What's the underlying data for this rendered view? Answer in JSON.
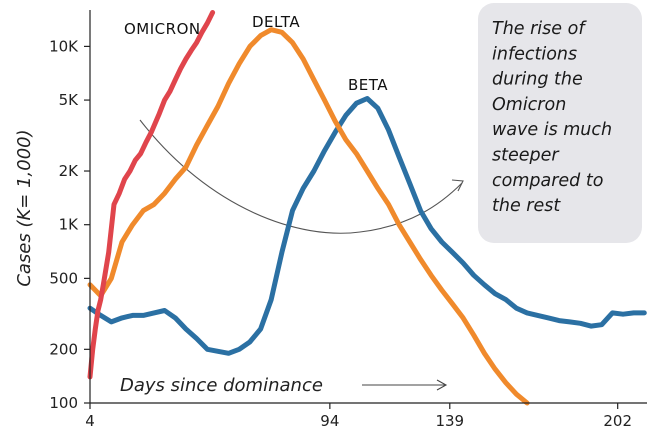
{
  "chart_data": {
    "type": "line",
    "ylabel": "Cases (K= 1,000)",
    "xlabel": "Days since dominance",
    "y_scale": "log",
    "ylim": [
      100,
      16000
    ],
    "xlim": [
      4,
      213
    ],
    "y_ticks": [
      {
        "value": 100,
        "label": "100"
      },
      {
        "value": 200,
        "label": "200"
      },
      {
        "value": 500,
        "label": "500"
      },
      {
        "value": 1000,
        "label": "1K"
      },
      {
        "value": 2000,
        "label": "2K"
      },
      {
        "value": 5000,
        "label": "5K"
      },
      {
        "value": 10000,
        "label": "10K"
      }
    ],
    "x_ticks": [
      {
        "value": 4,
        "label": "4"
      },
      {
        "value": 94,
        "label": "94"
      },
      {
        "value": 139,
        "label": "139"
      },
      {
        "value": 202,
        "label": "202"
      }
    ],
    "grid": false,
    "annotation": {
      "lines": [
        "The rise of",
        "infections",
        "during the",
        "Omicron",
        "wave is much",
        "steeper",
        "compared to",
        "the rest"
      ],
      "background": "#e6e6ea"
    },
    "series": [
      {
        "name": "OMICRON",
        "color": "#e0454c",
        "x": [
          4,
          5,
          6,
          7,
          8,
          9,
          11,
          13,
          15,
          17,
          19,
          21,
          23,
          25,
          27,
          30,
          32,
          34,
          36,
          38,
          40,
          42,
          44,
          46,
          48,
          50
        ],
        "y": [
          140,
          200,
          260,
          330,
          380,
          460,
          700,
          1300,
          1500,
          1800,
          2000,
          2300,
          2500,
          2900,
          3300,
          4200,
          5000,
          5600,
          6500,
          7500,
          8500,
          9500,
          10500,
          12000,
          13500,
          15500
        ]
      },
      {
        "name": "DELTA",
        "color": "#f08a2c",
        "x": [
          4,
          8,
          12,
          16,
          20,
          24,
          28,
          32,
          36,
          40,
          44,
          48,
          52,
          56,
          60,
          64,
          68,
          72,
          76,
          80,
          84,
          88,
          92,
          96,
          100,
          104,
          108,
          112,
          116,
          120,
          124,
          128,
          132,
          136,
          140,
          144,
          148,
          152,
          156,
          160,
          164,
          168
        ],
        "y": [
          460,
          400,
          500,
          800,
          1000,
          1200,
          1300,
          1500,
          1800,
          2100,
          2800,
          3600,
          4600,
          6200,
          8000,
          10000,
          11500,
          12400,
          12000,
          10500,
          8500,
          6500,
          5000,
          3800,
          3000,
          2500,
          2000,
          1600,
          1300,
          1000,
          800,
          640,
          520,
          430,
          360,
          300,
          240,
          190,
          155,
          130,
          112,
          100
        ]
      },
      {
        "name": "BETA",
        "color": "#2b70a3",
        "x": [
          4,
          8,
          12,
          16,
          20,
          24,
          28,
          32,
          36,
          40,
          44,
          48,
          52,
          56,
          60,
          64,
          68,
          72,
          76,
          80,
          84,
          88,
          92,
          96,
          100,
          104,
          108,
          112,
          116,
          120,
          124,
          128,
          132,
          136,
          140,
          144,
          148,
          152,
          156,
          160,
          164,
          168,
          172,
          176,
          180,
          184,
          188,
          192,
          196,
          200,
          204,
          208,
          212
        ],
        "y": [
          340,
          310,
          285,
          300,
          310,
          310,
          320,
          330,
          300,
          260,
          230,
          200,
          195,
          190,
          200,
          220,
          260,
          380,
          700,
          1200,
          1600,
          2000,
          2600,
          3300,
          4100,
          4800,
          5100,
          4500,
          3400,
          2400,
          1700,
          1200,
          950,
          800,
          700,
          610,
          520,
          460,
          410,
          380,
          340,
          320,
          310,
          300,
          290,
          285,
          280,
          270,
          275,
          320,
          315,
          320,
          320
        ]
      }
    ]
  }
}
